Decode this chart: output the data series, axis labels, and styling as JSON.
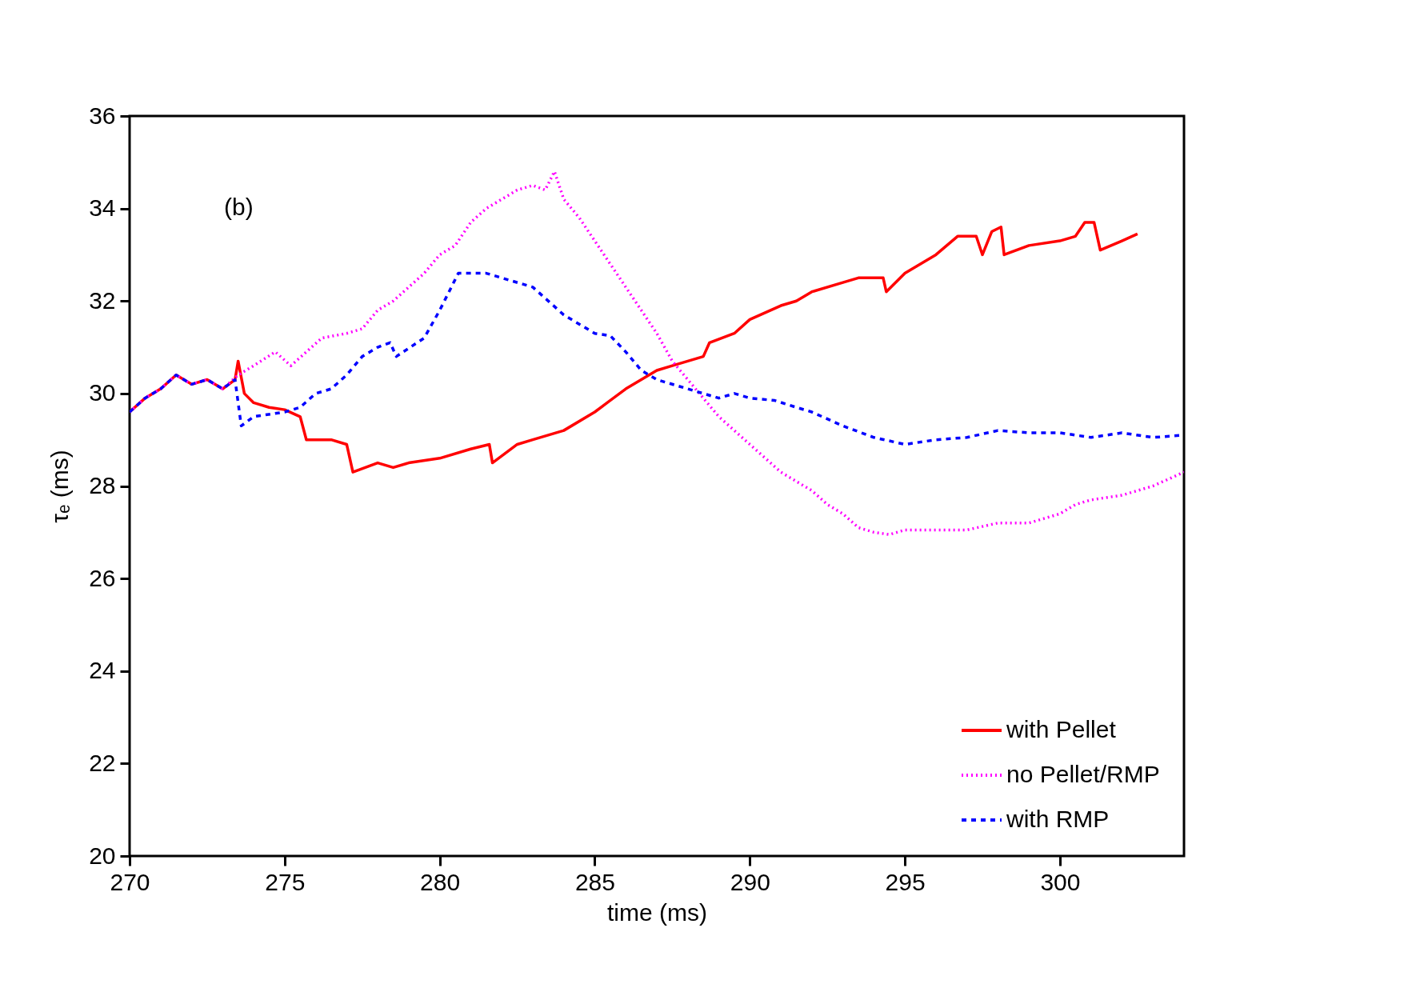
{
  "chart_data": {
    "type": "line",
    "xlabel": "time (ms)",
    "ylabel": "τₑ (ms)",
    "xlim": [
      270,
      304
    ],
    "ylim": [
      20,
      36
    ],
    "xticks": [
      270,
      275,
      280,
      285,
      290,
      295,
      300
    ],
    "yticks": [
      20,
      22,
      24,
      26,
      28,
      30,
      32,
      34,
      36
    ],
    "grid": false,
    "legend": "bottom right",
    "marker": "none",
    "annotations": [
      "(b)"
    ],
    "series": [
      {
        "name": "with Pellet",
        "color": "#ff0000",
        "line_style": "solid",
        "x": [
          270,
          270.5,
          271,
          271.5,
          272,
          272.5,
          273,
          273.4,
          273.5,
          273.7,
          274,
          274.5,
          275,
          275.5,
          275.7,
          276.5,
          277,
          277.2,
          278,
          278.5,
          279,
          280,
          281,
          281.6,
          281.7,
          282.5,
          283,
          284,
          285,
          286,
          287,
          287.5,
          288.5,
          288.7,
          289.5,
          290,
          291,
          291.5,
          292,
          293,
          293.5,
          294.3,
          294.4,
          295,
          295.5,
          296,
          296.7,
          297.3,
          297.5,
          297.8,
          298.1,
          298.2,
          299,
          300,
          300.5,
          300.8,
          301.1,
          301.3,
          302,
          302.5
        ],
        "values": [
          29.6,
          29.9,
          30.1,
          30.4,
          30.2,
          30.3,
          30.1,
          30.3,
          30.7,
          30.0,
          29.8,
          29.7,
          29.65,
          29.5,
          29.0,
          29.0,
          28.9,
          28.3,
          28.5,
          28.4,
          28.5,
          28.6,
          28.8,
          28.9,
          28.5,
          28.9,
          29.0,
          29.2,
          29.6,
          30.1,
          30.5,
          30.6,
          30.8,
          31.1,
          31.3,
          31.6,
          31.9,
          32.0,
          32.2,
          32.4,
          32.5,
          32.5,
          32.2,
          32.6,
          32.8,
          33.0,
          33.4,
          33.4,
          33.0,
          33.5,
          33.6,
          33.0,
          33.2,
          33.3,
          33.4,
          33.7,
          33.7,
          33.1,
          33.3,
          33.45
        ]
      },
      {
        "name": "no Pellet/RMP",
        "color": "#ff00ff",
        "line_style": "dotted",
        "x": [
          270,
          270.5,
          271,
          271.5,
          272,
          272.5,
          273,
          273.5,
          274,
          274.7,
          275.2,
          275.7,
          276.2,
          277,
          277.5,
          278,
          278.5,
          279,
          279.5,
          280,
          280.5,
          281,
          281.5,
          282,
          282.5,
          283,
          283.4,
          283.7,
          284,
          284.5,
          285,
          285.5,
          286,
          286.5,
          287,
          287.5,
          288,
          288.5,
          289,
          289.5,
          290,
          290.5,
          291,
          291.5,
          292,
          292.5,
          293,
          293.5,
          294,
          294.5,
          295,
          296,
          297,
          298,
          299,
          300,
          300.5,
          301,
          302,
          303,
          304
        ],
        "values": [
          29.6,
          29.9,
          30.1,
          30.4,
          30.2,
          30.3,
          30.1,
          30.4,
          30.6,
          30.9,
          30.6,
          30.9,
          31.2,
          31.3,
          31.4,
          31.8,
          32.0,
          32.3,
          32.6,
          33.0,
          33.2,
          33.7,
          34.0,
          34.2,
          34.4,
          34.5,
          34.4,
          34.8,
          34.2,
          33.8,
          33.3,
          32.8,
          32.3,
          31.8,
          31.3,
          30.7,
          30.3,
          29.9,
          29.5,
          29.2,
          28.9,
          28.6,
          28.3,
          28.1,
          27.9,
          27.6,
          27.4,
          27.1,
          27.0,
          26.95,
          27.05,
          27.05,
          27.05,
          27.2,
          27.2,
          27.4,
          27.6,
          27.7,
          27.8,
          28.0,
          28.3
        ]
      },
      {
        "name": "with RMP",
        "color": "#0000ff",
        "line_style": "dashed",
        "x": [
          270,
          270.5,
          271,
          271.5,
          272,
          272.5,
          273,
          273.4,
          273.6,
          274,
          275,
          275.5,
          276,
          276.5,
          277,
          277.5,
          278,
          278.4,
          278.6,
          279.5,
          280,
          280.3,
          280.6,
          281.5,
          282,
          283,
          284,
          284.5,
          285,
          285.5,
          286,
          286.5,
          287,
          288,
          289,
          289.5,
          290,
          290.8,
          291.5,
          292,
          293,
          294,
          295,
          296,
          297,
          298,
          299,
          300,
          301,
          302,
          303,
          304
        ],
        "values": [
          29.6,
          29.9,
          30.1,
          30.4,
          30.2,
          30.3,
          30.1,
          30.3,
          29.3,
          29.5,
          29.6,
          29.7,
          30.0,
          30.1,
          30.4,
          30.8,
          31.0,
          31.1,
          30.8,
          31.2,
          31.8,
          32.2,
          32.6,
          32.6,
          32.5,
          32.3,
          31.7,
          31.5,
          31.3,
          31.25,
          30.9,
          30.5,
          30.3,
          30.1,
          29.9,
          30.0,
          29.9,
          29.85,
          29.7,
          29.6,
          29.3,
          29.05,
          28.9,
          29.0,
          29.05,
          29.2,
          29.15,
          29.15,
          29.05,
          29.15,
          29.05,
          29.1
        ]
      }
    ]
  }
}
